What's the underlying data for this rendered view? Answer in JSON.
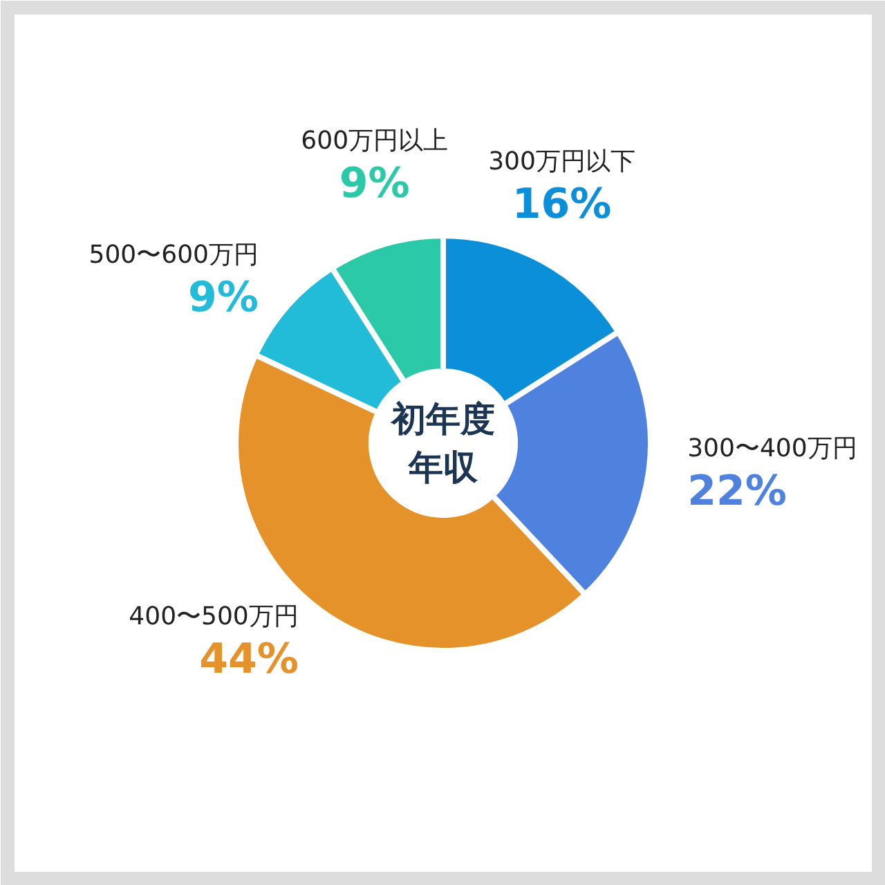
{
  "chart_data": {
    "type": "donut",
    "title": "初年度年収",
    "categories": [
      "300万円以下",
      "300〜400万円",
      "400〜500万円",
      "500〜600万円",
      "600万円以上"
    ],
    "values": [
      16,
      22,
      44,
      9,
      9
    ],
    "colors": [
      "#0b8fd8",
      "#4f82de",
      "#e6922a",
      "#22bcd9",
      "#2cc9a9"
    ],
    "value_labels": [
      "16%",
      "22%",
      "44%",
      "9%",
      "9%"
    ]
  }
}
